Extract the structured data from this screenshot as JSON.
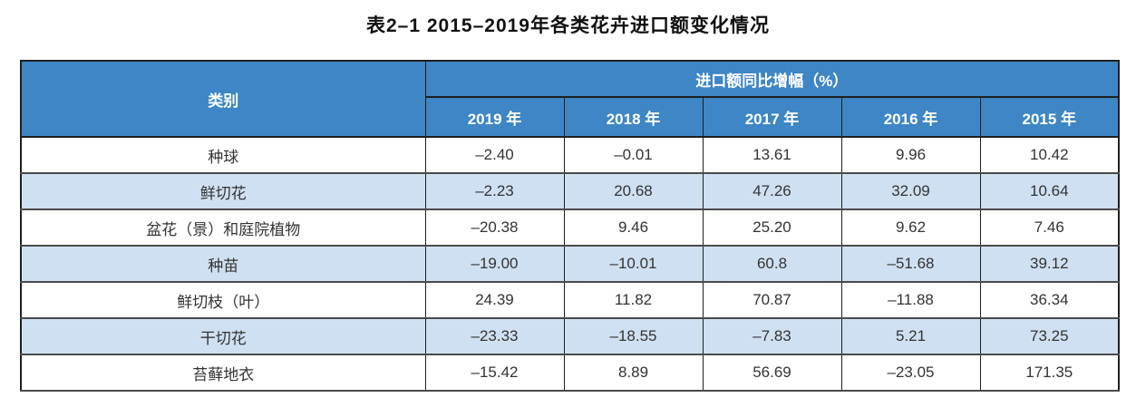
{
  "title": "表2–1 2015–2019年各类花卉进口额变化情况",
  "table": {
    "category_header": "类别",
    "group_header": "进口额同比增幅（%）",
    "year_headers": [
      "2019 年",
      "2018 年",
      "2017 年",
      "2016 年",
      "2015 年"
    ],
    "rows": [
      {
        "category": "种球",
        "values": [
          "–2.40",
          "–0.01",
          "13.61",
          "9.96",
          "10.42"
        ]
      },
      {
        "category": "鲜切花",
        "values": [
          "–2.23",
          "20.68",
          "47.26",
          "32.09",
          "10.64"
        ]
      },
      {
        "category": "盆花（景）和庭院植物",
        "values": [
          "–20.38",
          "9.46",
          "25.20",
          "9.62",
          "7.46"
        ]
      },
      {
        "category": "种苗",
        "values": [
          "–19.00",
          "–10.01",
          "60.8",
          "–51.68",
          "39.12"
        ]
      },
      {
        "category": "鲜切枝（叶）",
        "values": [
          "24.39",
          "11.82",
          "70.87",
          "–11.88",
          "36.34"
        ]
      },
      {
        "category": "干切花",
        "values": [
          "–23.33",
          "–18.55",
          "–7.83",
          "5.21",
          "73.25"
        ]
      },
      {
        "category": "苔藓地衣",
        "values": [
          "–15.42",
          "8.89",
          "56.69",
          "–23.05",
          "171.35"
        ]
      }
    ]
  },
  "colors": {
    "header_bg": "#3e86c5",
    "header_text": "#ffffff",
    "stripe_bg": "#cfe0f2",
    "row_bg": "#ffffff",
    "body_text": "#333333",
    "border_dark": "#1f1f1f"
  }
}
